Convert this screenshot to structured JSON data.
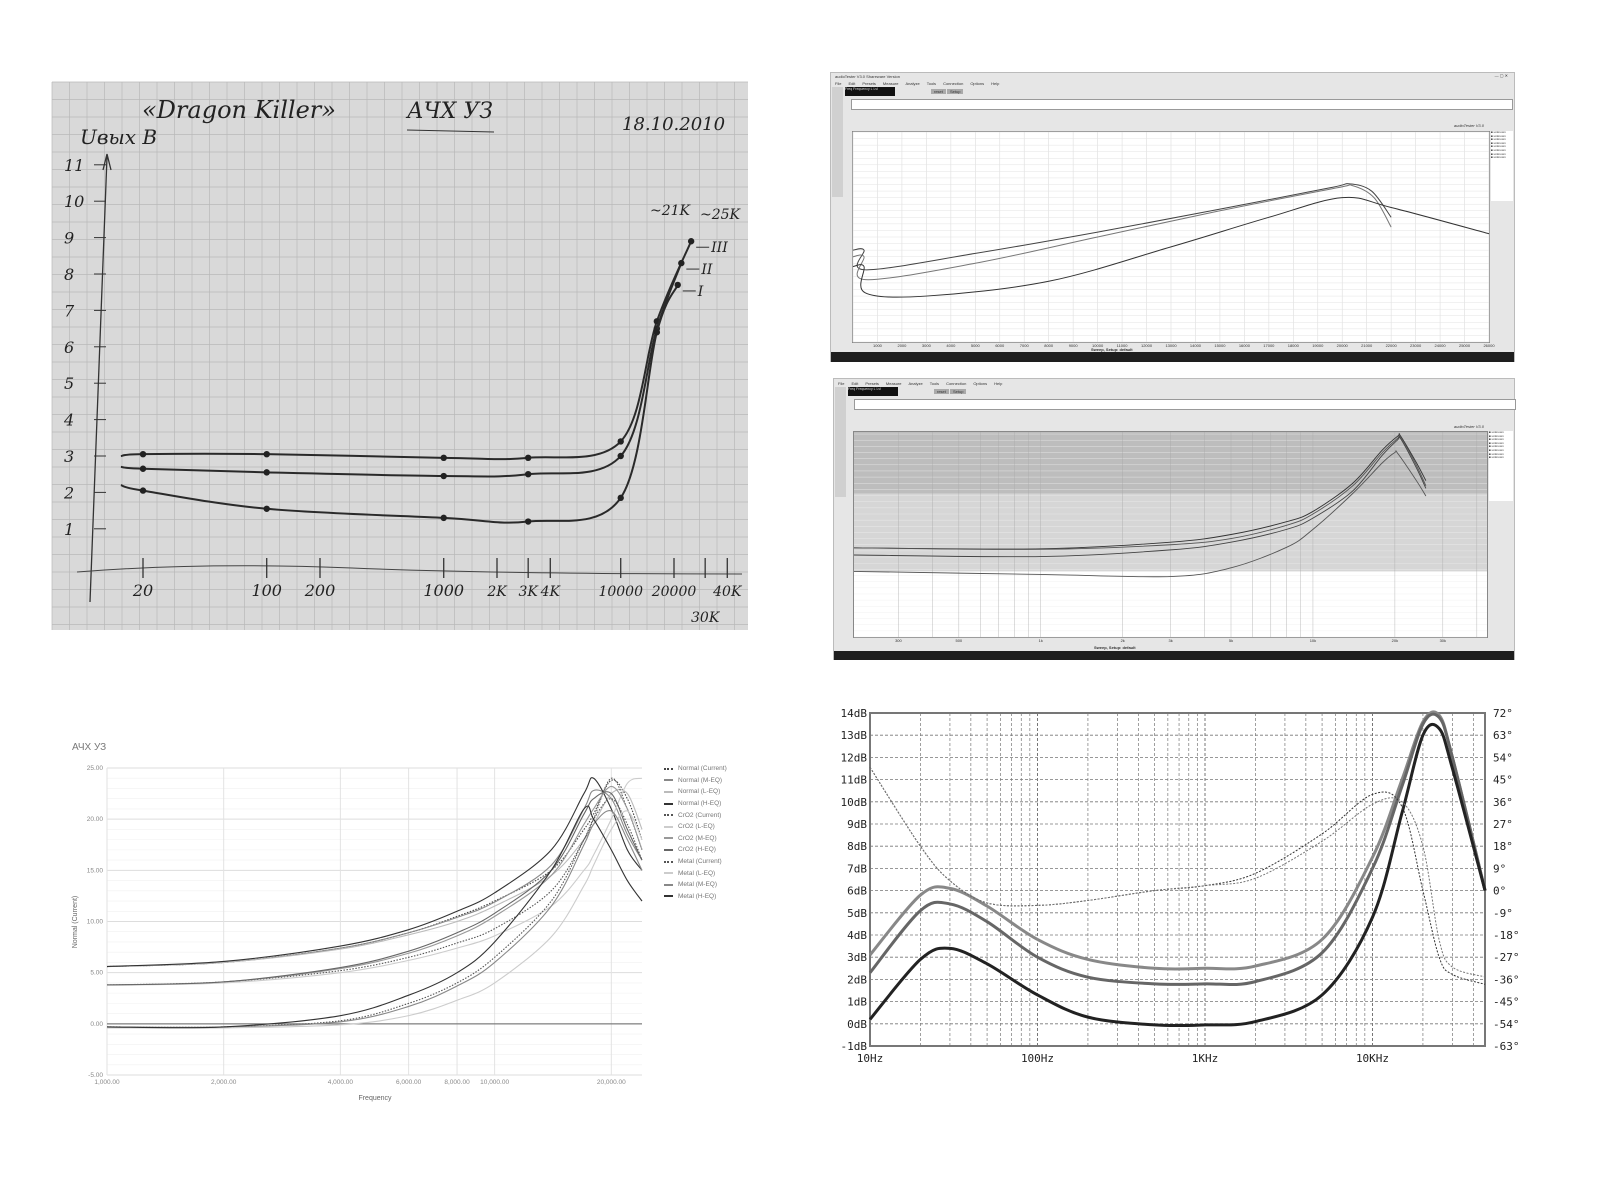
{
  "chart_data": [
    {
      "type": "line",
      "panel": "hand-drawn graph paper photo",
      "title": "«Dragon Killer»",
      "subtitle": "АЧХ УЗ",
      "date": "18.10.2010",
      "ylabel": "Uвых B",
      "x_scale": "log",
      "y_ticks": [
        "1",
        "2",
        "3",
        "4",
        "5",
        "6",
        "7",
        "8",
        "9",
        "10",
        "11"
      ],
      "x_ticks": [
        "20",
        "100",
        "200",
        "1000",
        "2K",
        "3K",
        "4K",
        "10000",
        "20000",
        "30K",
        "40K"
      ],
      "annotations": [
        "~21K",
        "~25K"
      ],
      "ylim": [
        0,
        11.5
      ],
      "series": [
        {
          "name": "III",
          "x": [
            15,
            20,
            100,
            1000,
            3000,
            10000,
            16000,
            25000
          ],
          "y": [
            3.0,
            3.05,
            3.05,
            2.95,
            2.95,
            3.4,
            6.7,
            8.9
          ]
        },
        {
          "name": "II",
          "x": [
            15,
            20,
            100,
            1000,
            3000,
            10000,
            16000,
            22000
          ],
          "y": [
            2.7,
            2.65,
            2.55,
            2.45,
            2.5,
            3.0,
            6.5,
            8.3
          ]
        },
        {
          "name": "I",
          "x": [
            15,
            20,
            100,
            1000,
            3000,
            10000,
            16000,
            21000
          ],
          "y": [
            2.2,
            2.05,
            1.55,
            1.3,
            1.2,
            1.85,
            6.4,
            7.7
          ]
        }
      ]
    },
    {
      "type": "line",
      "panel": "audioTester window 1",
      "x_scale": "linear",
      "xlim": [
        0,
        26000
      ],
      "ylim": [
        -60,
        4
      ],
      "x_ticks": [
        "1000",
        "2000",
        "3000",
        "4000",
        "5000",
        "6000",
        "7000",
        "8000",
        "9000",
        "10000",
        "11000",
        "12000",
        "13000",
        "14000",
        "15000",
        "16000",
        "17000",
        "18000",
        "19000",
        "20000",
        "21000",
        "22000",
        "23000",
        "24000",
        "25000",
        "26000"
      ],
      "series": [
        {
          "x": [
            0,
            450,
            500,
            5000,
            10000,
            15000,
            19500,
            20300,
            21200,
            22000
          ],
          "y": [
            -32,
            -32,
            -38,
            -33,
            -26.5,
            -19.5,
            -13,
            -11.8,
            -14,
            -22
          ]
        },
        {
          "x": [
            0,
            450,
            500,
            5000,
            10000,
            15000,
            19800,
            20400,
            21300,
            22000
          ],
          "y": [
            -34,
            -34,
            -41,
            -36,
            -28,
            -20,
            -13,
            -12.3,
            -16,
            -25
          ]
        },
        {
          "x": [
            0,
            450,
            500,
            3000,
            8000,
            13000,
            17000,
            20000,
            22000,
            26000
          ],
          "y": [
            -37,
            -37,
            -45,
            -46,
            -41.5,
            -31,
            -22,
            -16,
            -19,
            -27
          ]
        }
      ]
    },
    {
      "type": "line",
      "panel": "audioTester window 2",
      "x_scale": "log",
      "xlim": [
        206,
        43600
      ],
      "ylim": [
        -40,
        0
      ],
      "x_ticks": [
        "300",
        "500",
        "1k",
        "2k",
        "3k",
        "5k",
        "10k",
        "20k",
        "30k"
      ],
      "series": [
        {
          "x": [
            206,
            1000,
            3000,
            5000,
            8000,
            10000,
            14000,
            18000,
            20500,
            21000,
            24000,
            26000
          ],
          "y": [
            -22.6,
            -22.8,
            -21.5,
            -20,
            -17.5,
            -15.5,
            -10,
            -3.5,
            -0.8,
            -0.8,
            -6,
            -9.5
          ]
        },
        {
          "x": [
            206,
            1000,
            3000,
            5000,
            8000,
            10000,
            14000,
            18000,
            20500,
            21000,
            24000,
            26000
          ],
          "y": [
            -22.6,
            -22.9,
            -22,
            -20.8,
            -18.2,
            -16,
            -10.5,
            -4,
            -1.2,
            -1,
            -6.5,
            -10.5
          ]
        },
        {
          "x": [
            206,
            1000,
            3000,
            5000,
            8000,
            10000,
            14000,
            18000,
            20500,
            21000,
            24000,
            26000
          ],
          "y": [
            -24,
            -24.3,
            -23,
            -21.5,
            -19,
            -16.8,
            -11.5,
            -4.5,
            -1.5,
            -1.3,
            -7,
            -11
          ]
        },
        {
          "x": [
            206,
            1000,
            3000,
            5000,
            8000,
            10000,
            14000,
            18000,
            20000,
            20500,
            24000,
            26000
          ],
          "y": [
            -27.2,
            -27.8,
            -28.2,
            -26.5,
            -22.5,
            -19,
            -12,
            -6,
            -4,
            -4.2,
            -9.5,
            -12.5
          ]
        }
      ]
    },
    {
      "type": "line",
      "title": "АЧХ УЗ",
      "xlabel": "Frequency",
      "ylabel": "Normal (Current)",
      "x_scale": "log",
      "xlim": [
        1000,
        24000
      ],
      "ylim": [
        -5,
        25
      ],
      "y_ticks": [
        "25.00",
        "20.00",
        "15.00",
        "10.00",
        "5.00",
        "0.00",
        "-5.00"
      ],
      "x_ticks": [
        "1,000.00",
        "2,000.00",
        "4,000.00",
        "6,000.00",
        "8,000.00",
        "10,000.00",
        "20,000.00"
      ],
      "legend_position": "right",
      "grid": true,
      "x": [
        1000,
        2000,
        4000,
        6000,
        8000,
        10000,
        14000,
        17000,
        18000,
        20000,
        22000,
        24000
      ],
      "series": [
        {
          "name": "Normal (Current)",
          "style": "dotted",
          "color": "#444444",
          "values": [
            5.6,
            6.0,
            7.4,
            8.9,
            10.5,
            12,
            15,
            19,
            20.5,
            23.8,
            22,
            18
          ]
        },
        {
          "name": "Normal (M-EQ)",
          "style": "solid",
          "color": "#888888",
          "values": [
            5.6,
            6.0,
            7.4,
            8.9,
            10.4,
            11.9,
            15.5,
            21,
            22.8,
            22,
            18.5,
            16
          ]
        },
        {
          "name": "Normal (L-EQ)",
          "style": "solid",
          "color": "#bbbbbb",
          "values": [
            5.6,
            6.0,
            7.3,
            8.7,
            10,
            11.5,
            14.5,
            18,
            19.5,
            22.5,
            22.5,
            19
          ]
        },
        {
          "name": "Normal (H-EQ)",
          "style": "solid",
          "color": "#333333",
          "values": [
            5.6,
            6.1,
            7.6,
            9.2,
            11,
            12.8,
            17,
            22.5,
            24,
            21,
            17,
            15
          ]
        },
        {
          "name": "CrO2 (Current)",
          "style": "dotted",
          "color": "#555555",
          "values": [
            3.8,
            4.1,
            5.2,
            6.5,
            7.9,
            9.3,
            13,
            18,
            20,
            24,
            21,
            17
          ]
        },
        {
          "name": "CrO2 (L-EQ)",
          "style": "solid",
          "color": "#cccccc",
          "values": [
            3.8,
            4.0,
            5.0,
            6.2,
            7.4,
            8.6,
            11.5,
            15,
            16.5,
            20,
            23.5,
            24
          ]
        },
        {
          "name": "CrO2 (M-EQ)",
          "style": "solid",
          "color": "#999999",
          "values": [
            3.8,
            4.1,
            5.4,
            6.9,
            8.6,
            10.5,
            14.5,
            19.5,
            21,
            23.2,
            21,
            17
          ]
        },
        {
          "name": "CrO2 (H-EQ)",
          "style": "solid",
          "color": "#666666",
          "values": [
            3.8,
            4.1,
            5.5,
            7.1,
            8.9,
            10.8,
            15,
            20.5,
            22,
            22.5,
            19,
            16
          ]
        },
        {
          "name": "Metal (Current)",
          "style": "dotted",
          "color": "#555555",
          "values": [
            -0.3,
            -0.3,
            0.3,
            2,
            4,
            6.5,
            12,
            18,
            20,
            22,
            19.5,
            16
          ]
        },
        {
          "name": "Metal (L-EQ)",
          "style": "solid",
          "color": "#cccccc",
          "values": [
            -0.4,
            -0.4,
            -0.1,
            0.8,
            2.3,
            4,
            8.5,
            13.5,
            15.5,
            19,
            20.8,
            18
          ]
        },
        {
          "name": "Metal (M-EQ)",
          "style": "solid",
          "color": "#888888",
          "values": [
            -0.3,
            -0.3,
            0.2,
            1.7,
            3.7,
            6,
            11.5,
            17.5,
            19.5,
            20.8,
            18,
            15
          ]
        },
        {
          "name": "Metal (H-EQ)",
          "style": "solid",
          "color": "#333333",
          "values": [
            -0.3,
            -0.3,
            0.8,
            2.8,
            5,
            8,
            15,
            21,
            20,
            17,
            14,
            12
          ]
        }
      ]
    },
    {
      "type": "line",
      "x_scale": "log",
      "xlim": [
        10,
        47000
      ],
      "ylim": [
        -1,
        14
      ],
      "y2lim": [
        -63,
        72
      ],
      "grid": true,
      "y_ticks": [
        "14dB",
        "13dB",
        "12dB",
        "11dB",
        "10dB",
        "9dB",
        "8dB",
        "7dB",
        "6dB",
        "5dB",
        "4dB",
        "3dB",
        "2dB",
        "1dB",
        "0dB",
        "-1dB"
      ],
      "y2_ticks": [
        "72°",
        "63°",
        "54°",
        "45°",
        "36°",
        "27°",
        "18°",
        "9°",
        "0°",
        "-9°",
        "-18°",
        "-27°",
        "-36°",
        "-45°",
        "-54°",
        "-63°"
      ],
      "x_ticks": [
        "10Hz",
        "100Hz",
        "1KHz",
        "10KHz"
      ],
      "x": [
        10,
        20,
        30,
        50,
        100,
        200,
        500,
        1000,
        2000,
        5000,
        10000,
        15000,
        20000,
        25000,
        30000,
        47000
      ],
      "series": [
        {
          "axis": "dB",
          "style": "solid",
          "color": "#888888",
          "values": [
            3.1,
            5.8,
            6.1,
            5.3,
            3.8,
            2.9,
            2.5,
            2.5,
            2.6,
            3.8,
            7.5,
            11,
            13.6,
            13.9,
            12,
            6
          ]
        },
        {
          "axis": "dB",
          "style": "solid",
          "color": "#666666",
          "values": [
            2.3,
            5.1,
            5.4,
            4.6,
            3.0,
            2.1,
            1.8,
            1.8,
            1.9,
            3.2,
            7,
            10.7,
            13.5,
            13.8,
            12,
            6
          ]
        },
        {
          "axis": "dB",
          "style": "solid",
          "color": "#222222",
          "values": [
            0.2,
            2.9,
            3.4,
            2.7,
            1.3,
            0.3,
            -0.05,
            -0.05,
            0.1,
            1.3,
            4.8,
            9.5,
            13,
            13.3,
            11.5,
            6
          ]
        },
        {
          "axis": "deg",
          "style": "dotted",
          "color": "#333333",
          "values": [
            50,
            18,
            4,
            -5,
            -6,
            -4,
            0,
            2,
            7,
            23,
            39,
            34,
            0,
            -27,
            -34,
            -38
          ]
        },
        {
          "axis": "deg",
          "style": "dotted",
          "color": "#777777",
          "values": [
            50,
            18,
            4,
            -5,
            -6,
            -4,
            0,
            2,
            5,
            20,
            35,
            36,
            18,
            -20,
            -31,
            -35
          ]
        }
      ]
    }
  ],
  "windows": [
    {
      "title": "audioTester V3.0 Shareware Version",
      "menu": [
        "File",
        "Edit",
        "Presets",
        "Measure",
        "Analyze",
        "Tools",
        "Connection",
        "Options",
        "Help"
      ],
      "buttons": [
        "reset",
        "Setup"
      ],
      "readout": "Freq  Frequency  L Lvl",
      "brand": "audioTester V3.0",
      "status": "Sweep, Setup: default",
      "legend": [
        "unknown",
        "unknown",
        "unknown",
        "unknown",
        "unknown",
        "unknown",
        "unknown",
        "unknown"
      ]
    },
    {
      "title": "",
      "menu": [
        "File",
        "Edit",
        "Presets",
        "Measure",
        "Analyze",
        "Tools",
        "Connection",
        "Options",
        "Help"
      ],
      "buttons": [
        "reset",
        "Setup"
      ],
      "readout": "Freq  Frequency  L Lvl",
      "brand": "audioTester V3.0",
      "status": "Sweep, Setup: default",
      "legend": [
        "unknown",
        "unknown",
        "unknown",
        "unknown",
        "unknown",
        "unknown",
        "unknown",
        "unknown"
      ]
    }
  ]
}
